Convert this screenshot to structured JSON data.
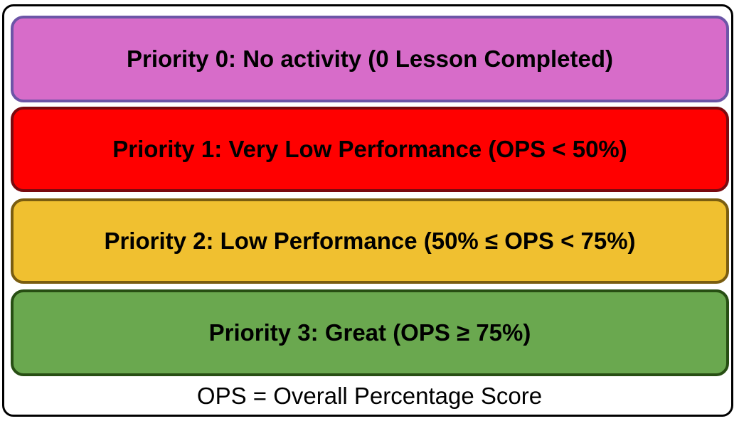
{
  "priorities": [
    {
      "label": "Priority 0: No activity (0 Lesson Completed)",
      "fill": "#d76cc9",
      "border": "#6c55a7"
    },
    {
      "label": "Priority 1: Very Low Performance (OPS < 50%)",
      "fill": "#ff0000",
      "border": "#7a0a0f"
    },
    {
      "label": "Priority 2: Low Performance (50% ≤ OPS < 75%)",
      "fill": "#f0c030",
      "border": "#7a5d10"
    },
    {
      "label": "Priority 3: Great (OPS ≥ 75%)",
      "fill": "#6aa84f",
      "border": "#274e13"
    }
  ],
  "footnote": "OPS = Overall Percentage Score"
}
